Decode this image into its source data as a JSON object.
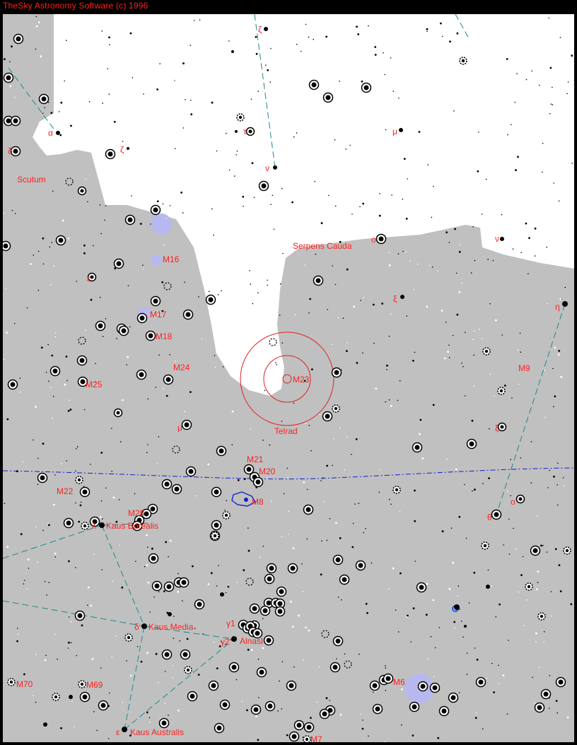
{
  "window": {
    "title": "TheSky Astronomy Software (c) 1996"
  },
  "chart": {
    "colors": {
      "milky_way": "#c0c0c0",
      "sky": "#ffffff",
      "label": "#ff2020",
      "constellation_line": "#1a8a8a",
      "ecliptic": "#1020d0",
      "nebula": "#b8b8f0",
      "telrad": "#e02020"
    },
    "constellations": [
      {
        "id": "scutum",
        "label": "Scutum"
      },
      {
        "id": "serpens-cauda",
        "label": "Serpens Cauda"
      }
    ],
    "telrad": {
      "label": "Telrad"
    },
    "deep_sky_objects": [
      {
        "id": "m16",
        "label": "M16"
      },
      {
        "id": "m17",
        "label": "M17"
      },
      {
        "id": "m18",
        "label": "M18"
      },
      {
        "id": "m24",
        "label": "M24"
      },
      {
        "id": "m25",
        "label": "M25"
      },
      {
        "id": "m23",
        "label": "M23"
      },
      {
        "id": "m21",
        "label": "M21"
      },
      {
        "id": "m20",
        "label": "M20"
      },
      {
        "id": "m8",
        "label": "M8"
      },
      {
        "id": "m22",
        "label": "M22"
      },
      {
        "id": "m28",
        "label": "M28"
      },
      {
        "id": "m9",
        "label": "M9"
      },
      {
        "id": "m6",
        "label": "M6"
      },
      {
        "id": "m70",
        "label": "M70"
      },
      {
        "id": "m69",
        "label": "M69"
      },
      {
        "id": "m7",
        "label": "M7"
      }
    ],
    "named_stars": [
      {
        "id": "kaus-borealis",
        "label": "Kaus Borealis",
        "greek": "λ"
      },
      {
        "id": "kaus-media",
        "label": "Kaus Media",
        "greek": "δ"
      },
      {
        "id": "alnasl",
        "label": "Alnasl",
        "greek": "γ2"
      },
      {
        "id": "kaus-australis",
        "label": "Kaus Australis",
        "greek": "ε"
      }
    ],
    "greek_labels": [
      {
        "id": "alpha-sct",
        "text": "α"
      },
      {
        "id": "delta-sct",
        "text": "δ"
      },
      {
        "id": "zeta-sct",
        "text": "ζ"
      },
      {
        "id": "epsilon-sct",
        "text": "ε"
      },
      {
        "id": "zeta-ser",
        "text": "ζ"
      },
      {
        "id": "tau-ser",
        "text": "τ"
      },
      {
        "id": "mu-ser",
        "text": "μ"
      },
      {
        "id": "nu-ser",
        "text": "ν"
      },
      {
        "id": "omicron-ser",
        "text": "ο"
      },
      {
        "id": "nu-oph",
        "text": "ν"
      },
      {
        "id": "xi-ser",
        "text": "ξ"
      },
      {
        "id": "eta-oph",
        "text": "η"
      },
      {
        "id": "mu-sgr",
        "text": "μ"
      },
      {
        "id": "xi-oph",
        "text": "ξ"
      },
      {
        "id": "omicron-oph",
        "text": "ο"
      },
      {
        "id": "theta-oph",
        "text": "θ"
      },
      {
        "id": "gamma1-sgr",
        "text": "γ1"
      }
    ]
  }
}
